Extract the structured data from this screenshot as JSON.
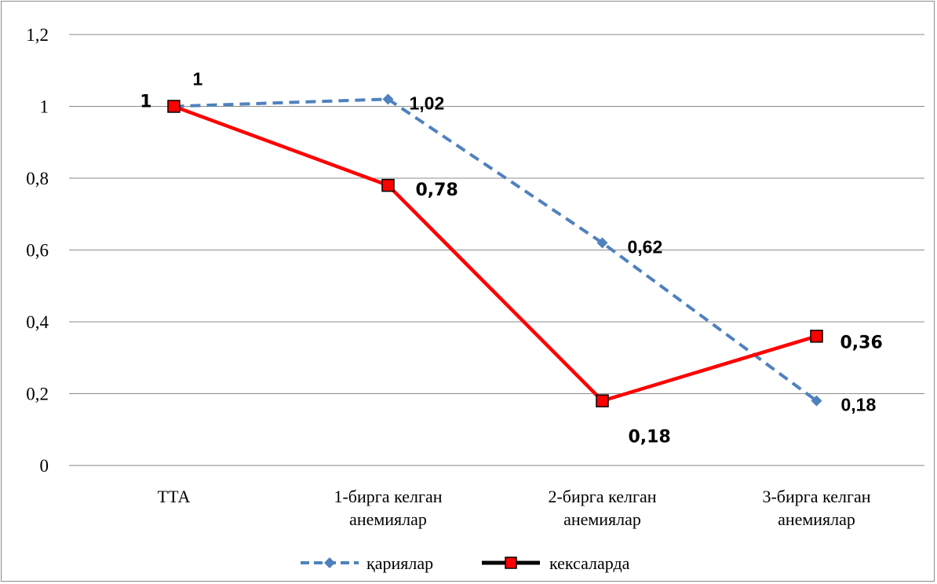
{
  "chart_data": {
    "type": "line",
    "categories": [
      [
        "ТТА"
      ],
      [
        "1-бирга келган",
        "анемиялар"
      ],
      [
        "2-бирга келган",
        "анемиялар"
      ],
      [
        "3-бирга келган",
        "анемиялар"
      ]
    ],
    "ylim": [
      0,
      1.2
    ],
    "yticks": [
      "0",
      "0,2",
      "0,4",
      "0,6",
      "0,8",
      "1",
      "1,2"
    ],
    "grid": true,
    "legend_position": "bottom",
    "series": [
      {
        "name": "қариялар",
        "values": [
          1,
          1.02,
          0.62,
          0.18
        ],
        "labels": [
          "1",
          "1,02",
          "0,62",
          "0,18"
        ],
        "color": "#4f81bd",
        "line_style": "dashed",
        "marker": "diamond"
      },
      {
        "name": "кексаларда",
        "values": [
          1,
          0.78,
          0.18,
          0.36
        ],
        "labels": [
          "1",
          "0,78",
          "0,18",
          "0,36"
        ],
        "color": "#ff0000",
        "line_style": "solid",
        "marker": "square"
      }
    ]
  }
}
